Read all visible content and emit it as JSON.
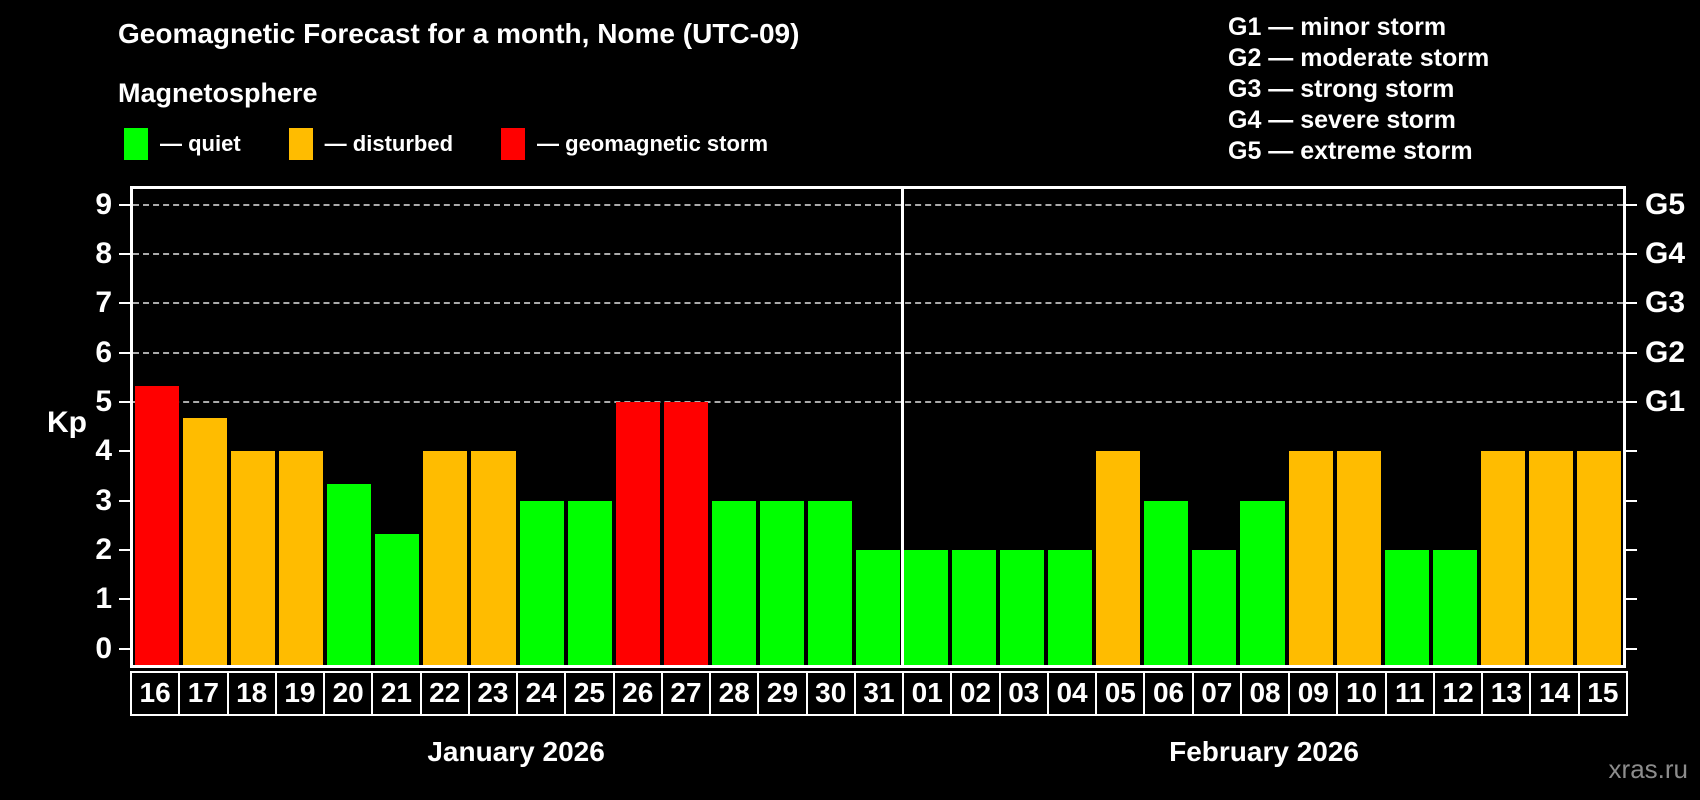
{
  "page": {
    "title": "Geomagnetic Forecast for a month, Nome (UTC-09)",
    "subtitle": "Magnetosphere",
    "watermark": "xras.ru"
  },
  "colors": {
    "background": "#000000",
    "quiet": "#00ff00",
    "disturbed": "#ffbc00",
    "storm": "#ff0000",
    "axis": "#ffffff",
    "grid": "#aaaaaa",
    "watermark_text": "#8c8c8c"
  },
  "legend": [
    {
      "key": "quiet",
      "label": "— quiet"
    },
    {
      "key": "disturbed",
      "label": "— disturbed"
    },
    {
      "key": "storm",
      "label": "— geomagnetic storm"
    }
  ],
  "g_legend": [
    "G1 — minor storm",
    "G2 — moderate storm",
    "G3 — strong storm",
    "G4 — severe storm",
    "G5 — extreme storm"
  ],
  "chart_data": {
    "type": "bar",
    "ylabel": "Kp",
    "ylim": [
      -0.33,
      9.32
    ],
    "y_ticks": [
      0,
      1,
      2,
      3,
      4,
      5,
      6,
      7,
      8,
      9
    ],
    "gridlines_kp": [
      5,
      6,
      7,
      8,
      9
    ],
    "right_axis": [
      {
        "label": "G1",
        "kp": 5
      },
      {
        "label": "G2",
        "kp": 6
      },
      {
        "label": "G3",
        "kp": 7
      },
      {
        "label": "G4",
        "kp": 8
      },
      {
        "label": "G5",
        "kp": 9
      }
    ],
    "months": [
      {
        "label": "January 2026",
        "days": 16
      },
      {
        "label": "February 2026",
        "days": 15
      }
    ],
    "bars": [
      {
        "day": "16",
        "kp": 5.33,
        "level": "storm"
      },
      {
        "day": "17",
        "kp": 4.67,
        "level": "disturbed"
      },
      {
        "day": "18",
        "kp": 4,
        "level": "disturbed"
      },
      {
        "day": "19",
        "kp": 4,
        "level": "disturbed"
      },
      {
        "day": "20",
        "kp": 3.33,
        "level": "quiet"
      },
      {
        "day": "21",
        "kp": 2.33,
        "level": "quiet"
      },
      {
        "day": "22",
        "kp": 4,
        "level": "disturbed"
      },
      {
        "day": "23",
        "kp": 4,
        "level": "disturbed"
      },
      {
        "day": "24",
        "kp": 3,
        "level": "quiet"
      },
      {
        "day": "25",
        "kp": 3,
        "level": "quiet"
      },
      {
        "day": "26",
        "kp": 5,
        "level": "storm"
      },
      {
        "day": "27",
        "kp": 5,
        "level": "storm"
      },
      {
        "day": "28",
        "kp": 3,
        "level": "quiet"
      },
      {
        "day": "29",
        "kp": 3,
        "level": "quiet"
      },
      {
        "day": "30",
        "kp": 3,
        "level": "quiet"
      },
      {
        "day": "31",
        "kp": 2,
        "level": "quiet"
      },
      {
        "day": "01",
        "kp": 2,
        "level": "quiet"
      },
      {
        "day": "02",
        "kp": 2,
        "level": "quiet"
      },
      {
        "day": "03",
        "kp": 2,
        "level": "quiet"
      },
      {
        "day": "04",
        "kp": 2,
        "level": "quiet"
      },
      {
        "day": "05",
        "kp": 4,
        "level": "disturbed"
      },
      {
        "day": "06",
        "kp": 3,
        "level": "quiet"
      },
      {
        "day": "07",
        "kp": 2,
        "level": "quiet"
      },
      {
        "day": "08",
        "kp": 3,
        "level": "quiet"
      },
      {
        "day": "09",
        "kp": 4,
        "level": "disturbed"
      },
      {
        "day": "10",
        "kp": 4,
        "level": "disturbed"
      },
      {
        "day": "11",
        "kp": 2,
        "level": "quiet"
      },
      {
        "day": "12",
        "kp": 2,
        "level": "quiet"
      },
      {
        "day": "13",
        "kp": 4,
        "level": "disturbed"
      },
      {
        "day": "14",
        "kp": 4,
        "level": "disturbed"
      },
      {
        "day": "15",
        "kp": 4,
        "level": "disturbed"
      }
    ]
  }
}
